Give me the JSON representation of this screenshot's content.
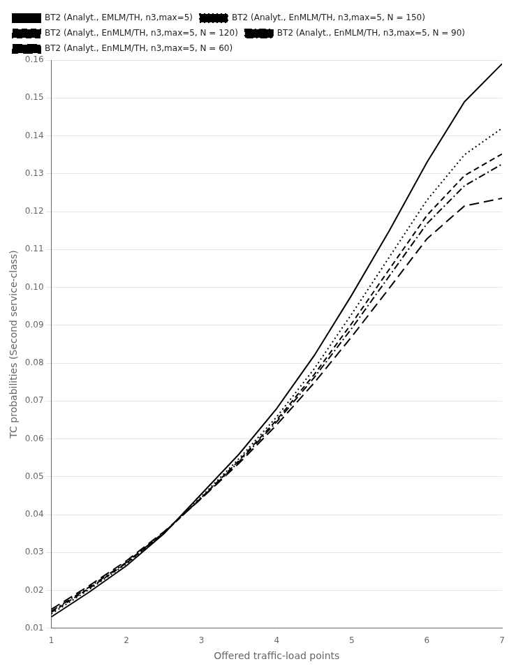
{
  "chart_data": {
    "type": "line",
    "x_label": "Offered traffic-load points",
    "y_label": "TC probabilities (Second service-class)",
    "xlim": [
      1,
      7
    ],
    "ylim": [
      0.01,
      0.16
    ],
    "xticks": [
      1,
      2,
      3,
      4,
      5,
      6,
      7
    ],
    "yticks": [
      0.01,
      0.02,
      0.03,
      0.04,
      0.05,
      0.06,
      0.07,
      0.08,
      0.09,
      {
        "value": 0.1,
        "label": "0.10"
      },
      0.11,
      0.12,
      0.13,
      0.14,
      0.15,
      0.16
    ],
    "grid": "y",
    "legend": "upper left",
    "x": [
      1,
      1.5,
      2,
      2.5,
      3,
      3.5,
      4,
      4.5,
      5,
      5.5,
      6,
      6.5,
      7
    ],
    "series": [
      {
        "name": "BT2 (Analyt., EMLM/TH, n3,max=5)",
        "color": "#000000",
        "line_style": "solid",
        "values": [
          0.013,
          0.0195,
          0.0265,
          0.035,
          0.0455,
          0.056,
          0.068,
          0.082,
          0.098,
          0.115,
          0.133,
          0.149,
          0.159
        ]
      },
      {
        "name": "BT2 (Analyt., EnMLM/TH, n3,max=5, N = 150)",
        "color": "#000000",
        "line_style": "dotted",
        "values": [
          0.0138,
          0.0202,
          0.027,
          0.0352,
          0.0448,
          0.0548,
          0.0658,
          0.0785,
          0.093,
          0.108,
          0.123,
          0.135,
          0.142
        ]
      },
      {
        "name": "BT2 (Analyt., EnMLM/TH, n3,max=5, N = 120)",
        "color": "#000000",
        "line_style": "dashed",
        "values": [
          0.0142,
          0.0205,
          0.0272,
          0.0352,
          0.0445,
          0.0543,
          0.065,
          0.077,
          0.0905,
          0.1048,
          0.119,
          0.1295,
          0.1352
        ]
      },
      {
        "name": "BT2 (Analyt., EnMLM/TH, n3,max=5, N = 90)",
        "color": "#000000",
        "line_style": "dashdot",
        "values": [
          0.0145,
          0.0208,
          0.0274,
          0.0353,
          0.0444,
          0.054,
          0.0645,
          0.0762,
          0.0892,
          0.103,
          0.1168,
          0.1268,
          0.1325
        ]
      },
      {
        "name": "BT2 (Analyt., EnMLM/TH, n3,max=5, N = 60)",
        "color": "#000000",
        "line_style": "loosely dashed",
        "values": [
          0.015,
          0.0212,
          0.0278,
          0.0355,
          0.0443,
          0.0536,
          0.0637,
          0.0748,
          0.087,
          0.0998,
          0.1128,
          0.1215,
          0.1235
        ]
      }
    ]
  }
}
